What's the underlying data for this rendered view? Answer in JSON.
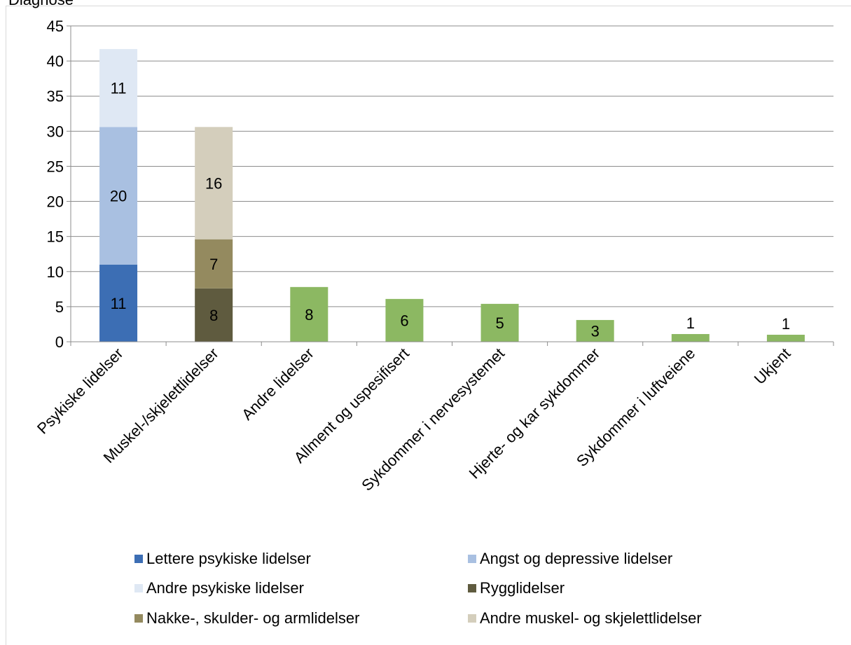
{
  "header": {
    "clipped_title": "Diagnose"
  },
  "chart_data": {
    "type": "bar",
    "stacked": true,
    "categories": [
      "Psykiske lidelser",
      "Muskel-/skjelettlidelser",
      "Andre lidelser",
      "Allment og uspesifisert",
      "Sykdommer i nervesystemet",
      "Hjerte- og kar sykdommer",
      "Sykdommer i luftveiene",
      "Ukjent"
    ],
    "series": [
      {
        "name": "Lettere psykiske lidelser",
        "color": "#3c6eb4",
        "values": [
          11,
          null,
          null,
          null,
          null,
          null,
          null,
          null
        ],
        "labels": [
          "11",
          "",
          "",
          "",
          "",
          "",
          "",
          ""
        ]
      },
      {
        "name": "Angst og depressive lidelser",
        "color": "#a9c0e1",
        "values": [
          19.6,
          null,
          null,
          null,
          null,
          null,
          null,
          null
        ],
        "labels": [
          "20",
          "",
          "",
          "",
          "",
          "",
          "",
          ""
        ]
      },
      {
        "name": "Andre psykiske lidelser",
        "color": "#dfe8f4",
        "values": [
          11.1,
          null,
          null,
          null,
          null,
          null,
          null,
          null
        ],
        "labels": [
          "11",
          "",
          "",
          "",
          "",
          "",
          "",
          ""
        ]
      },
      {
        "name": "Rygglidelser",
        "color": "#5f5b3f",
        "values": [
          null,
          7.6,
          null,
          null,
          null,
          null,
          null,
          null
        ],
        "labels": [
          "",
          "8",
          "",
          "",
          "",
          "",
          "",
          ""
        ]
      },
      {
        "name": "Nakke-, skulder- og armlidelser",
        "color": "#948a5f",
        "values": [
          null,
          7,
          null,
          null,
          null,
          null,
          null,
          null
        ],
        "labels": [
          "",
          "7",
          "",
          "",
          "",
          "",
          "",
          ""
        ]
      },
      {
        "name": "Andre muskel- og skjelettlidelser",
        "color": "#d4cebc",
        "values": [
          null,
          16,
          null,
          null,
          null,
          null,
          null,
          null
        ],
        "labels": [
          "",
          "16",
          "",
          "",
          "",
          "",
          "",
          ""
        ]
      },
      {
        "name": "",
        "color": "#8cb862",
        "values": [
          null,
          null,
          7.8,
          6.1,
          5.4,
          3.1,
          1.1,
          1.0
        ],
        "labels": [
          "",
          "",
          "8",
          "6",
          "5",
          "3",
          "1",
          "1"
        ]
      }
    ],
    "ylim": [
      0,
      45
    ],
    "yticks": [
      "0",
      "5",
      "10",
      "15",
      "20",
      "25",
      "30",
      "35",
      "40",
      "45"
    ],
    "grid": true,
    "legend": "bottom",
    "legend_entries": [
      "Lettere psykiske lidelser",
      "Angst og depressive lidelser",
      "Andre psykiske lidelser",
      "Rygglidelser",
      "Nakke-, skulder- og armlidelser",
      "Andre muskel- og skjelettlidelser"
    ],
    "xlabel": "",
    "ylabel": ""
  }
}
